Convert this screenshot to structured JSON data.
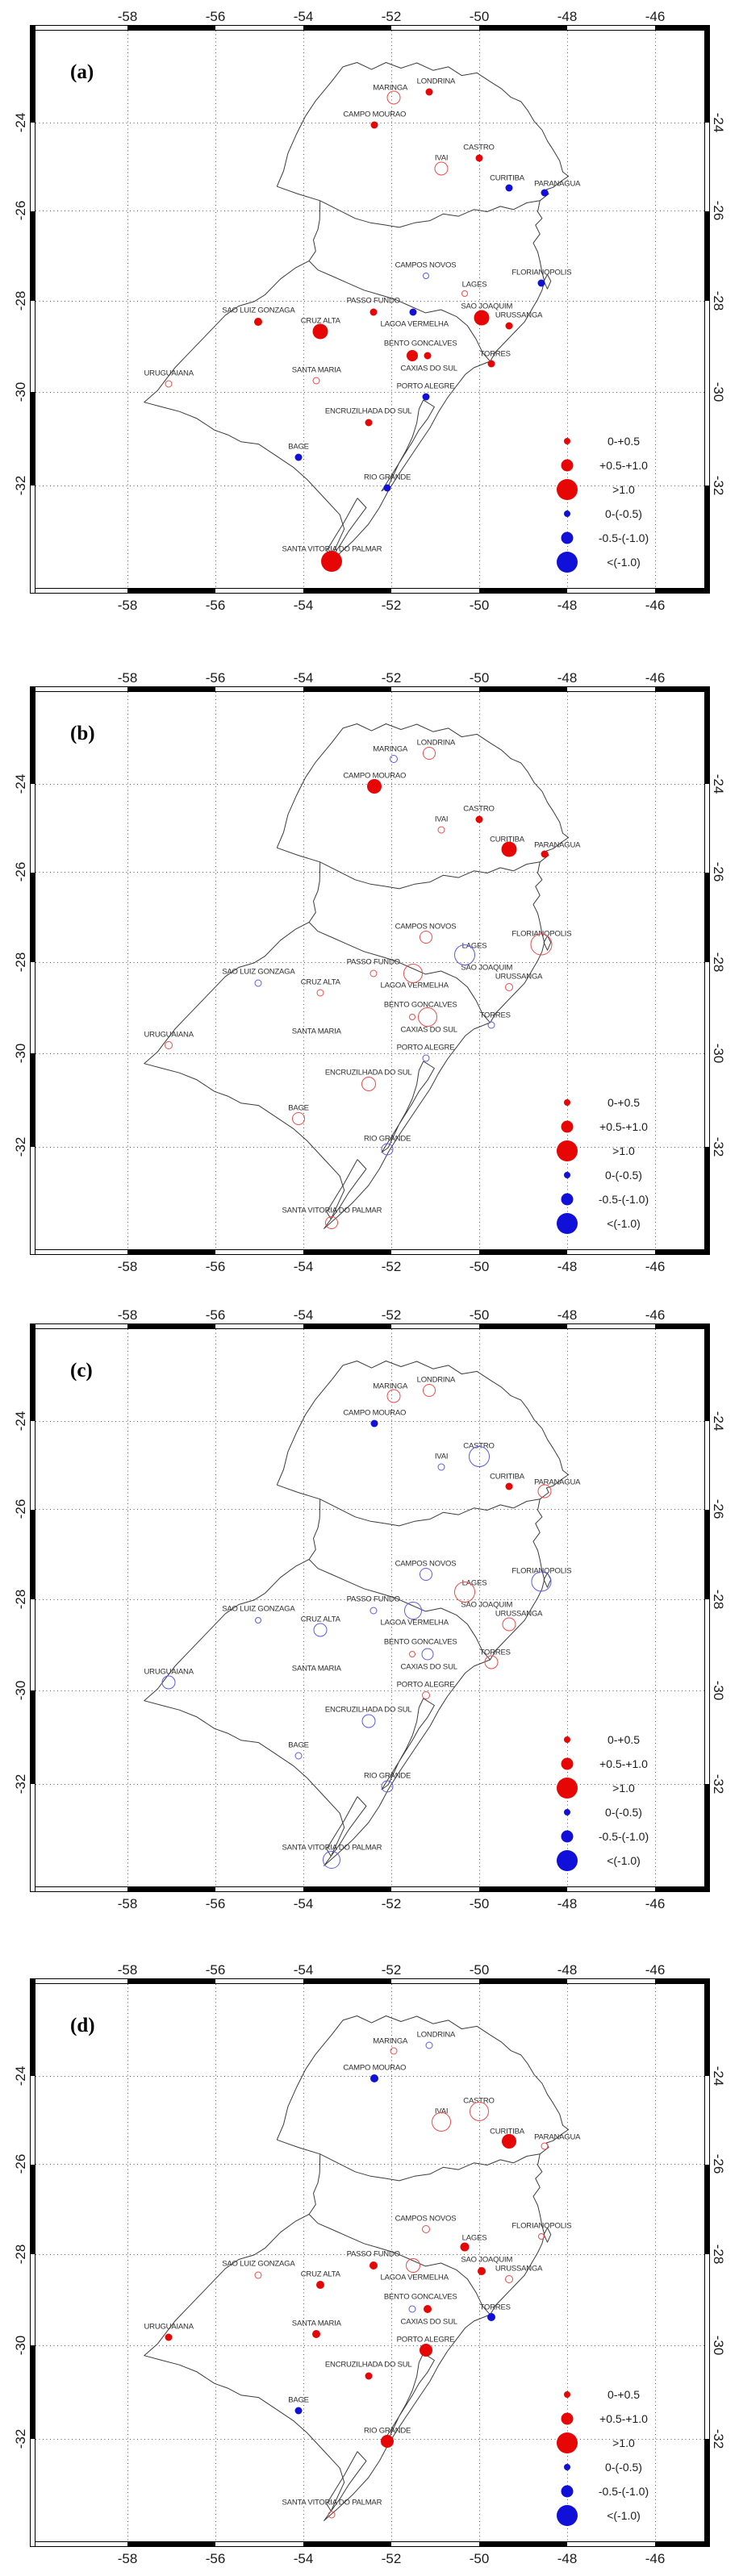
{
  "figure": {
    "panel_labels": [
      "(a)",
      "(b)",
      "(c)",
      "(d)"
    ],
    "x_tick_labels": [
      "-58",
      "-56",
      "-54",
      "-52",
      "-50",
      "-48",
      "-46"
    ],
    "y_tick_labels": [
      "-24",
      "-26",
      "-28",
      "-30",
      "-32"
    ],
    "colors": {
      "positive_fill": "#e60606",
      "positive_ring": "#ee4b4b",
      "negative_fill": "#1010d8",
      "negative_ring": "#5a5aee",
      "outline": "#3c3c3c",
      "grid": "#5a5a5a"
    },
    "legend": {
      "entries": [
        {
          "label": "0-+0.5",
          "color": "positive",
          "dia": 8
        },
        {
          "label": "+0.5-+1.0",
          "color": "positive",
          "dia": 15
        },
        {
          "label": ">1.0",
          "color": "positive",
          "dia": 26
        },
        {
          "label": "0-(-0.5)",
          "color": "negative",
          "dia": 8
        },
        {
          "label": "-0.5-(-1.0)",
          "color": "negative",
          "dia": 15
        },
        {
          "label": "<(-1.0)",
          "color": "negative",
          "dia": 26
        }
      ]
    }
  },
  "chart_data": {
    "type": "scatter",
    "subtype": "station-trend bubble maps (4 panels)",
    "x_axis": {
      "ticks": [
        -58,
        -56,
        -54,
        -52,
        -50,
        -48,
        -46
      ],
      "range": [
        -60.1,
        -44.9
      ],
      "unit": "longitude"
    },
    "y_axis": {
      "ticks": [
        -24,
        -26,
        -28,
        -30,
        -32
      ],
      "range": [
        -22.2,
        -34.4
      ],
      "unit": "latitude"
    },
    "grid": true,
    "legend_position": "lower-right inside plot",
    "size_classes": {
      "small": "0 to 0.5",
      "medium": "0.5 to 1.0",
      "large": "greater than 1.0"
    },
    "encoding": {
      "sign": "+ red / - blue",
      "filled": "solid symbol",
      "open": "hollow symbol",
      "dia": "symbol diameter px"
    },
    "stations": [
      {
        "name": "LONDRINA",
        "lon": -51.13,
        "lat": -23.3,
        "panels": {
          "a": [
            "+",
            true,
            9
          ],
          "b": [
            "+",
            false,
            16
          ],
          "c": [
            "+",
            false,
            16
          ],
          "d": [
            "-",
            false,
            9
          ]
        }
      },
      {
        "name": "MARINGA",
        "lon": -51.95,
        "lat": -23.42,
        "panels": {
          "a": [
            "+",
            false,
            17
          ],
          "b": [
            "-",
            false,
            10
          ],
          "c": [
            "+",
            false,
            17
          ],
          "d": [
            "+",
            false,
            9
          ]
        }
      },
      {
        "name": "CAMPO MOURAO",
        "lon": -52.38,
        "lat": -24.06,
        "panels": {
          "a": [
            "+",
            true,
            9
          ],
          "b": [
            "+",
            true,
            18
          ],
          "c": [
            "-",
            true,
            9
          ],
          "d": [
            "-",
            true,
            10
          ]
        }
      },
      {
        "name": "CASTRO",
        "lon": -50.01,
        "lat": -24.81,
        "panels": {
          "a": [
            "+",
            true,
            9
          ],
          "b": [
            "+",
            true,
            9
          ],
          "c": [
            "-",
            false,
            26
          ],
          "d": [
            "+",
            false,
            24
          ]
        }
      },
      {
        "name": "IVAI",
        "lon": -50.86,
        "lat": -25.05,
        "panels": {
          "a": [
            "+",
            false,
            17
          ],
          "b": [
            "+",
            false,
            9
          ],
          "c": [
            "-",
            false,
            9
          ],
          "d": [
            "+",
            false,
            24
          ]
        }
      },
      {
        "name": "CURITIBA",
        "lon": -49.33,
        "lat": -25.48,
        "panels": {
          "a": [
            "-",
            true,
            9
          ],
          "b": [
            "+",
            true,
            19
          ],
          "c": [
            "+",
            true,
            9
          ],
          "d": [
            "+",
            true,
            18
          ]
        }
      },
      {
        "name": "PARANAGUA",
        "lon": -48.52,
        "lat": -25.59,
        "panels": {
          "a": [
            "-",
            true,
            9
          ],
          "b": [
            "+",
            true,
            9
          ],
          "c": [
            "+",
            false,
            17
          ],
          "d": [
            "+",
            false,
            9
          ]
        }
      },
      {
        "name": "CAMPOS NOVOS",
        "lon": -51.22,
        "lat": -27.45,
        "panels": {
          "a": [
            "-",
            false,
            8
          ],
          "b": [
            "+",
            false,
            16
          ],
          "c": [
            "-",
            false,
            16
          ],
          "d": [
            "+",
            false,
            10
          ]
        }
      },
      {
        "name": "LAGES",
        "lon": -50.33,
        "lat": -27.85,
        "panels": {
          "a": [
            "+",
            false,
            8
          ],
          "b": [
            "-",
            false,
            26
          ],
          "c": [
            "+",
            false,
            26
          ],
          "d": [
            "+",
            true,
            11
          ]
        }
      },
      {
        "name": "FLORIANOPOLIS",
        "lon": -48.58,
        "lat": -27.62,
        "panels": {
          "a": [
            "-",
            true,
            9
          ],
          "b": [
            "+",
            false,
            27
          ],
          "c": [
            "-",
            false,
            25
          ],
          "d": [
            "+",
            false,
            8
          ]
        }
      },
      {
        "name": "SAO JOAQUIM",
        "lon": -49.94,
        "lat": -28.37,
        "panels": {
          "a": [
            "+",
            true,
            19
          ],
          "d": [
            "+",
            true,
            10
          ]
        }
      },
      {
        "name": "URUSSANGA",
        "lon": -49.32,
        "lat": -28.55,
        "panels": {
          "a": [
            "+",
            true,
            9
          ],
          "b": [
            "+",
            false,
            10
          ],
          "c": [
            "+",
            false,
            17
          ],
          "d": [
            "+",
            false,
            10
          ]
        }
      },
      {
        "name": "SAO LUIZ GONZAGA",
        "lon": -55.02,
        "lat": -28.46,
        "panels": {
          "a": [
            "+",
            true,
            10
          ],
          "b": [
            "-",
            false,
            9
          ],
          "c": [
            "-",
            false,
            8
          ],
          "d": [
            "+",
            false,
            9
          ]
        }
      },
      {
        "name": "PASSO FUNDO",
        "lon": -52.41,
        "lat": -28.26,
        "panels": {
          "a": [
            "+",
            true,
            9
          ],
          "b": [
            "+",
            false,
            9
          ],
          "c": [
            "-",
            false,
            9
          ],
          "d": [
            "+",
            true,
            10
          ]
        }
      },
      {
        "name": "LAGOA VERMELHA",
        "lon": -51.51,
        "lat": -28.26,
        "panels": {
          "a": [
            "-",
            true,
            9
          ],
          "b": [
            "+",
            false,
            24
          ],
          "c": [
            "-",
            false,
            22
          ],
          "d": [
            "+",
            false,
            18
          ]
        }
      },
      {
        "name": "CRUZ ALTA",
        "lon": -53.61,
        "lat": -28.68,
        "panels": {
          "a": [
            "+",
            true,
            19
          ],
          "b": [
            "+",
            false,
            9
          ],
          "c": [
            "-",
            false,
            17
          ],
          "d": [
            "+",
            true,
            10
          ]
        }
      },
      {
        "name": "BENTO GONCALVES",
        "lon": -51.52,
        "lat": -29.2,
        "panels": {
          "a": [
            "+",
            true,
            14
          ],
          "b": [
            "+",
            false,
            8
          ],
          "c": [
            "+",
            false,
            8
          ],
          "d": [
            "-",
            false,
            9
          ]
        }
      },
      {
        "name": "CAXIAS DO SUL",
        "lon": -51.18,
        "lat": -29.2,
        "panels": {
          "a": [
            "+",
            true,
            9
          ],
          "b": [
            "+",
            false,
            24
          ],
          "c": [
            "-",
            false,
            15
          ],
          "d": [
            "+",
            true,
            10
          ]
        }
      },
      {
        "name": "TORRES",
        "lon": -49.73,
        "lat": -29.38,
        "panels": {
          "a": [
            "+",
            true,
            9
          ],
          "b": [
            "-",
            false,
            9
          ],
          "c": [
            "+",
            false,
            17
          ],
          "d": [
            "-",
            true,
            10
          ]
        }
      },
      {
        "name": "URUGUAIANA",
        "lon": -57.06,
        "lat": -29.83,
        "panels": {
          "a": [
            "+",
            false,
            9
          ],
          "b": [
            "+",
            false,
            10
          ],
          "c": [
            "-",
            false,
            17
          ],
          "d": [
            "+",
            true,
            9
          ]
        }
      },
      {
        "name": "SANTA MARIA",
        "lon": -53.7,
        "lat": -29.75,
        "panels": {
          "a": [
            "+",
            false,
            9
          ],
          "d": [
            "+",
            true,
            10
          ]
        }
      },
      {
        "name": "PORTO ALEGRE",
        "lon": -51.22,
        "lat": -30.1,
        "panels": {
          "a": [
            "-",
            true,
            9
          ],
          "b": [
            "-",
            false,
            9
          ],
          "c": [
            "+",
            false,
            10
          ],
          "d": [
            "+",
            true,
            16
          ]
        }
      },
      {
        "name": "ENCRUZILHADA DO SUL",
        "lon": -52.52,
        "lat": -30.65,
        "panels": {
          "a": [
            "+",
            true,
            9
          ],
          "b": [
            "+",
            false,
            18
          ],
          "c": [
            "-",
            false,
            17
          ],
          "d": [
            "+",
            true,
            9
          ]
        }
      },
      {
        "name": "BAGE",
        "lon": -54.11,
        "lat": -31.4,
        "panels": {
          "a": [
            "-",
            true,
            9
          ],
          "b": [
            "+",
            false,
            16
          ],
          "c": [
            "-",
            false,
            9
          ],
          "d": [
            "-",
            true,
            9
          ]
        }
      },
      {
        "name": "RIO GRANDE",
        "lon": -52.09,
        "lat": -32.05,
        "panels": {
          "a": [
            "-",
            true,
            9
          ],
          "b": [
            "-",
            false,
            15
          ],
          "c": [
            "-",
            false,
            15
          ],
          "d": [
            "+",
            true,
            16
          ]
        }
      },
      {
        "name": "SANTA VITORIA DO PALMAR",
        "lon": -53.35,
        "lat": -33.6,
        "panels": {
          "a": [
            "+",
            true,
            26
          ],
          "b": [
            "+",
            false,
            16
          ],
          "c": [
            "-",
            false,
            22
          ],
          "d": [
            "+",
            false,
            9
          ]
        }
      }
    ]
  }
}
